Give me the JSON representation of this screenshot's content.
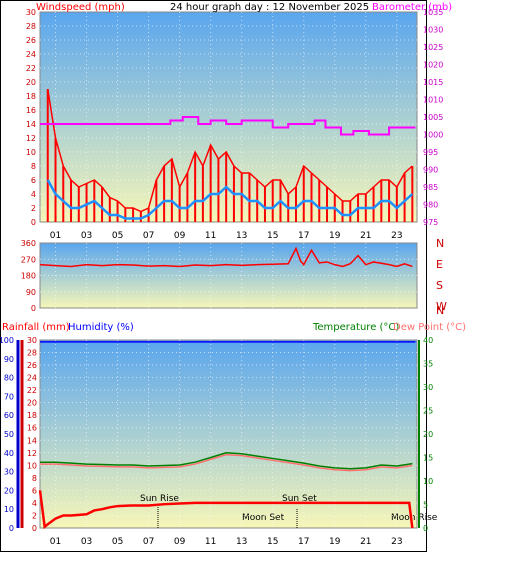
{
  "page": {
    "title": "24 hour graph day : 12 November 2025"
  },
  "colors": {
    "wind": "#ff0000",
    "gust_line": "#ff0000",
    "avg_wind": "#1e90ff",
    "barometer": "#ff00ff",
    "direction": "#ff0000",
    "humidity": "#0000ff",
    "temperature": "#008000",
    "dewpoint": "#ff7070",
    "rainfall": "#ff0000"
  },
  "chart_data": [
    {
      "type": "line",
      "name": "wind_baro",
      "title": "24 hour graph day : 12 November 2025",
      "left_label": "Windspeed (mph)",
      "right_label": "Barometer (mb)",
      "x_ticks": [
        "01",
        "03",
        "05",
        "07",
        "09",
        "11",
        "13",
        "15",
        "17",
        "19",
        "21",
        "23"
      ],
      "left_ylim": [
        0,
        30
      ],
      "left_ticks": [
        "0",
        "2",
        "4",
        "6",
        "8",
        "10",
        "12",
        "14",
        "16",
        "18",
        "20",
        "22",
        "24",
        "26",
        "28",
        "30"
      ],
      "right_ylim": [
        975,
        1035
      ],
      "right_ticks": [
        "975",
        "980",
        "985",
        "990",
        "995",
        "1000",
        "1005",
        "1010",
        "1015",
        "1020",
        "1025",
        "1030",
        "1035"
      ],
      "series": [
        {
          "key": "gust",
          "x": [
            0.5,
            1,
            1.5,
            2,
            2.5,
            3,
            3.5,
            4,
            4.5,
            5,
            5.5,
            6,
            6.5,
            7,
            7.5,
            8,
            8.5,
            9,
            9.5,
            10,
            10.5,
            11,
            11.5,
            12,
            12.5,
            13,
            13.5,
            14,
            14.5,
            15,
            15.5,
            16,
            16.5,
            17,
            17.5,
            18,
            18.5,
            19,
            19.5,
            20,
            20.5,
            21,
            21.5,
            22,
            22.5,
            23,
            23.5,
            24
          ],
          "y": [
            19,
            12,
            8,
            6,
            5,
            5.5,
            6,
            5,
            3.5,
            3,
            2,
            2,
            1.5,
            2,
            6,
            8,
            9,
            5,
            7,
            10,
            8,
            11,
            9,
            10,
            8,
            7,
            7,
            6,
            5,
            6,
            6,
            4,
            5,
            8,
            7,
            6,
            5,
            4,
            3,
            3,
            4,
            4,
            5,
            6,
            6,
            5,
            7,
            8
          ]
        },
        {
          "key": "avg",
          "x": [
            0.5,
            1,
            1.5,
            2,
            2.5,
            3,
            3.5,
            4,
            4.5,
            5,
            5.5,
            6,
            6.5,
            7,
            7.5,
            8,
            8.5,
            9,
            9.5,
            10,
            10.5,
            11,
            11.5,
            12,
            12.5,
            13,
            13.5,
            14,
            14.5,
            15,
            15.5,
            16,
            16.5,
            17,
            17.5,
            18,
            18.5,
            19,
            19.5,
            20,
            20.5,
            21,
            21.5,
            22,
            22.5,
            23,
            23.5,
            24
          ],
          "y": [
            6,
            4,
            3,
            2,
            2,
            2.5,
            3,
            2,
            1,
            1,
            0.5,
            0.5,
            0.5,
            1,
            2,
            3,
            3,
            2,
            2,
            3,
            3,
            4,
            4,
            5,
            4,
            4,
            3,
            3,
            2,
            2,
            3,
            2,
            2,
            3,
            3,
            2,
            2,
            2,
            1,
            1,
            2,
            2,
            2,
            3,
            3,
            2,
            3,
            4
          ]
        },
        {
          "key": "baro",
          "x": [
            0,
            8.3,
            8.4,
            9,
            9.2,
            10,
            10.2,
            10.8,
            11,
            11.8,
            12,
            12.8,
            13,
            14.9,
            15,
            15.7,
            16,
            17.5,
            17.7,
            18.2,
            18.4,
            19.2,
            19.4,
            20,
            20.2,
            21,
            21.2,
            22.3,
            22.5,
            24.2
          ],
          "y": [
            1003,
            1003,
            1004,
            1004,
            1005,
            1005,
            1003,
            1003,
            1004,
            1004,
            1003,
            1003,
            1004,
            1004,
            1002,
            1002,
            1003,
            1003,
            1004,
            1004,
            1002,
            1002,
            1000,
            1000,
            1001,
            1001,
            1000,
            1000,
            1002,
            1002
          ]
        }
      ]
    },
    {
      "type": "line",
      "name": "wind_direction",
      "left_ticks": [
        "0",
        "90",
        "180",
        "270",
        "360"
      ],
      "ylim": [
        0,
        360
      ],
      "compass": [
        "N",
        "W",
        "S",
        "E",
        "N"
      ],
      "series": [
        {
          "key": "direction",
          "x": [
            0,
            1,
            2,
            3,
            4,
            5,
            6,
            7,
            8,
            9,
            10,
            11,
            12,
            13,
            14,
            15,
            16,
            16.5,
            16.8,
            17,
            17.5,
            18,
            18.5,
            19,
            19.5,
            20,
            20.5,
            21,
            21.5,
            22,
            22.5,
            23,
            23.5,
            24
          ],
          "y": [
            240,
            235,
            230,
            240,
            235,
            240,
            238,
            232,
            235,
            230,
            238,
            235,
            240,
            236,
            240,
            242,
            245,
            330,
            260,
            240,
            320,
            250,
            255,
            240,
            230,
            245,
            290,
            240,
            255,
            248,
            240,
            230,
            245,
            230
          ]
        }
      ]
    },
    {
      "type": "line",
      "name": "temp_hum_rain",
      "left_label_1": "Rainfall (mm)",
      "left_label_2": "Humidity (%)",
      "right_label_1": "Temperature (°C)",
      "right_label_2": "Dew Point (°C)",
      "rain_ylim": [
        0,
        30
      ],
      "rain_ticks": [
        "0",
        "2",
        "4",
        "6",
        "8",
        "10",
        "12",
        "14",
        "16",
        "18",
        "20",
        "22",
        "24",
        "26",
        "28",
        "30"
      ],
      "humidity_ylim": [
        0,
        100
      ],
      "humidity_ticks": [
        "0",
        "10",
        "20",
        "30",
        "40",
        "50",
        "60",
        "70",
        "80",
        "90",
        "100"
      ],
      "temp_ylim": [
        0,
        40
      ],
      "temp_ticks": [
        "0",
        "5",
        "10",
        "15",
        "20",
        "25",
        "30",
        "35",
        "40"
      ],
      "annotations": [
        "Sun Rise",
        "Sun Set",
        "Moon Set",
        "Moon Rise"
      ],
      "series": [
        {
          "key": "humidity",
          "x": [
            0,
            24.2
          ],
          "y": [
            99,
            99
          ]
        },
        {
          "key": "temperature",
          "x": [
            0,
            1,
            2,
            3,
            4,
            5,
            6,
            7,
            8,
            9,
            10,
            11,
            12,
            13,
            14,
            15,
            16,
            17,
            18,
            19,
            20,
            21,
            22,
            23,
            24
          ],
          "y": [
            14,
            14,
            13.8,
            13.6,
            13.5,
            13.4,
            13.4,
            13.2,
            13.3,
            13.4,
            14,
            15,
            16,
            15.8,
            15.3,
            14.8,
            14.3,
            13.8,
            13.2,
            12.8,
            12.6,
            12.8,
            13.4,
            13.2,
            13.7
          ]
        },
        {
          "key": "dewpoint",
          "x": [
            0,
            1,
            2,
            3,
            4,
            5,
            6,
            7,
            8,
            9,
            10,
            11,
            12,
            13,
            14,
            15,
            16,
            17,
            18,
            19,
            20,
            21,
            22,
            23,
            24
          ],
          "y": [
            13.6,
            13.6,
            13.4,
            13.2,
            13.1,
            13,
            13,
            12.8,
            12.9,
            13,
            13.6,
            14.6,
            15.6,
            15.4,
            14.9,
            14.4,
            13.9,
            13.4,
            12.8,
            12.4,
            12.2,
            12.4,
            13,
            12.8,
            13.3
          ]
        },
        {
          "key": "rain",
          "x": [
            0,
            0.3,
            0.5,
            1,
            1.5,
            2,
            3,
            3.5,
            4,
            4.5,
            5,
            6,
            7,
            8,
            9,
            10,
            11,
            12,
            13,
            14,
            15,
            16,
            17,
            18,
            19,
            20,
            21,
            22,
            23,
            23.8,
            24
          ],
          "y": [
            6,
            0.2,
            0.6,
            1.5,
            2,
            2,
            2.2,
            2.8,
            3,
            3.3,
            3.5,
            3.6,
            3.6,
            3.8,
            3.9,
            4,
            4,
            4,
            4,
            4,
            4,
            4,
            4,
            4,
            4,
            4,
            4,
            4,
            4,
            4,
            0
          ]
        }
      ]
    }
  ]
}
